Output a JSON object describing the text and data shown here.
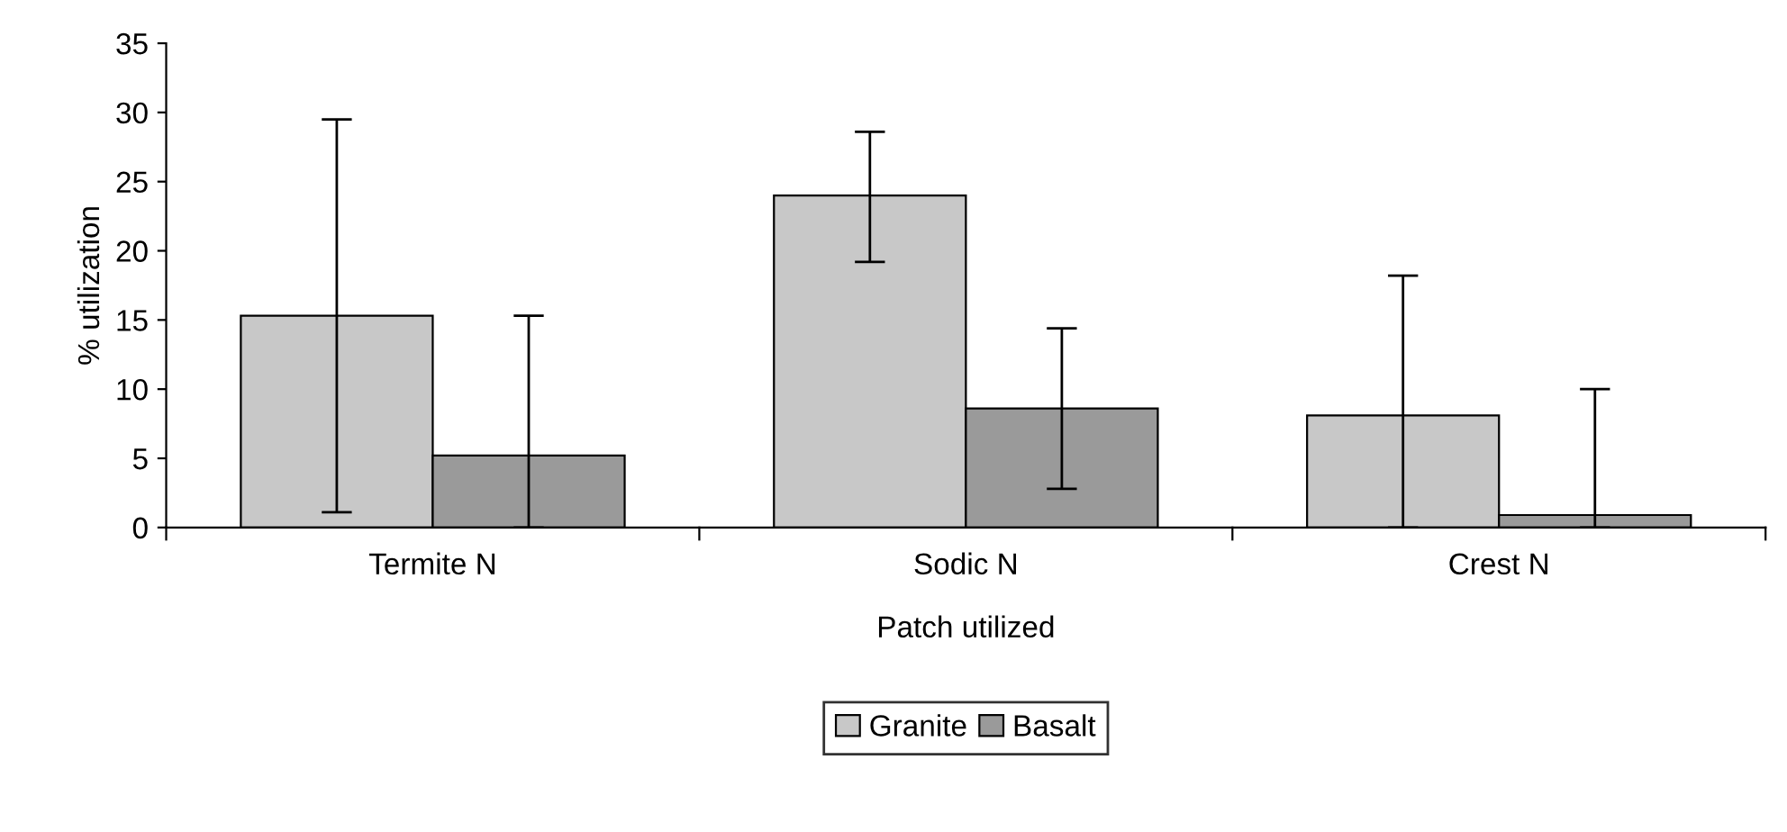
{
  "chart_data": {
    "type": "bar",
    "xlabel": "Patch utilized",
    "ylabel": "% utilization",
    "categories": [
      "Termite N",
      "Sodic N",
      "Crest N"
    ],
    "series": [
      {
        "name": "Granite",
        "color": "#c8c8c8",
        "values": [
          15.3,
          24.0,
          8.1
        ],
        "errors": [
          [
            1.1,
            29.5
          ],
          [
            19.2,
            28.6
          ],
          [
            0,
            18.2
          ]
        ]
      },
      {
        "name": "Basalt",
        "color": "#9a9a9a",
        "values": [
          5.2,
          8.6,
          0.9
        ],
        "errors": [
          [
            0,
            15.3
          ],
          [
            2.8,
            14.4
          ],
          [
            0,
            10.0
          ]
        ]
      }
    ],
    "ylim": [
      0,
      35
    ],
    "yticks": [
      0,
      5,
      10,
      15,
      20,
      25,
      30,
      35
    ],
    "grid": false,
    "legend": "bottom"
  }
}
